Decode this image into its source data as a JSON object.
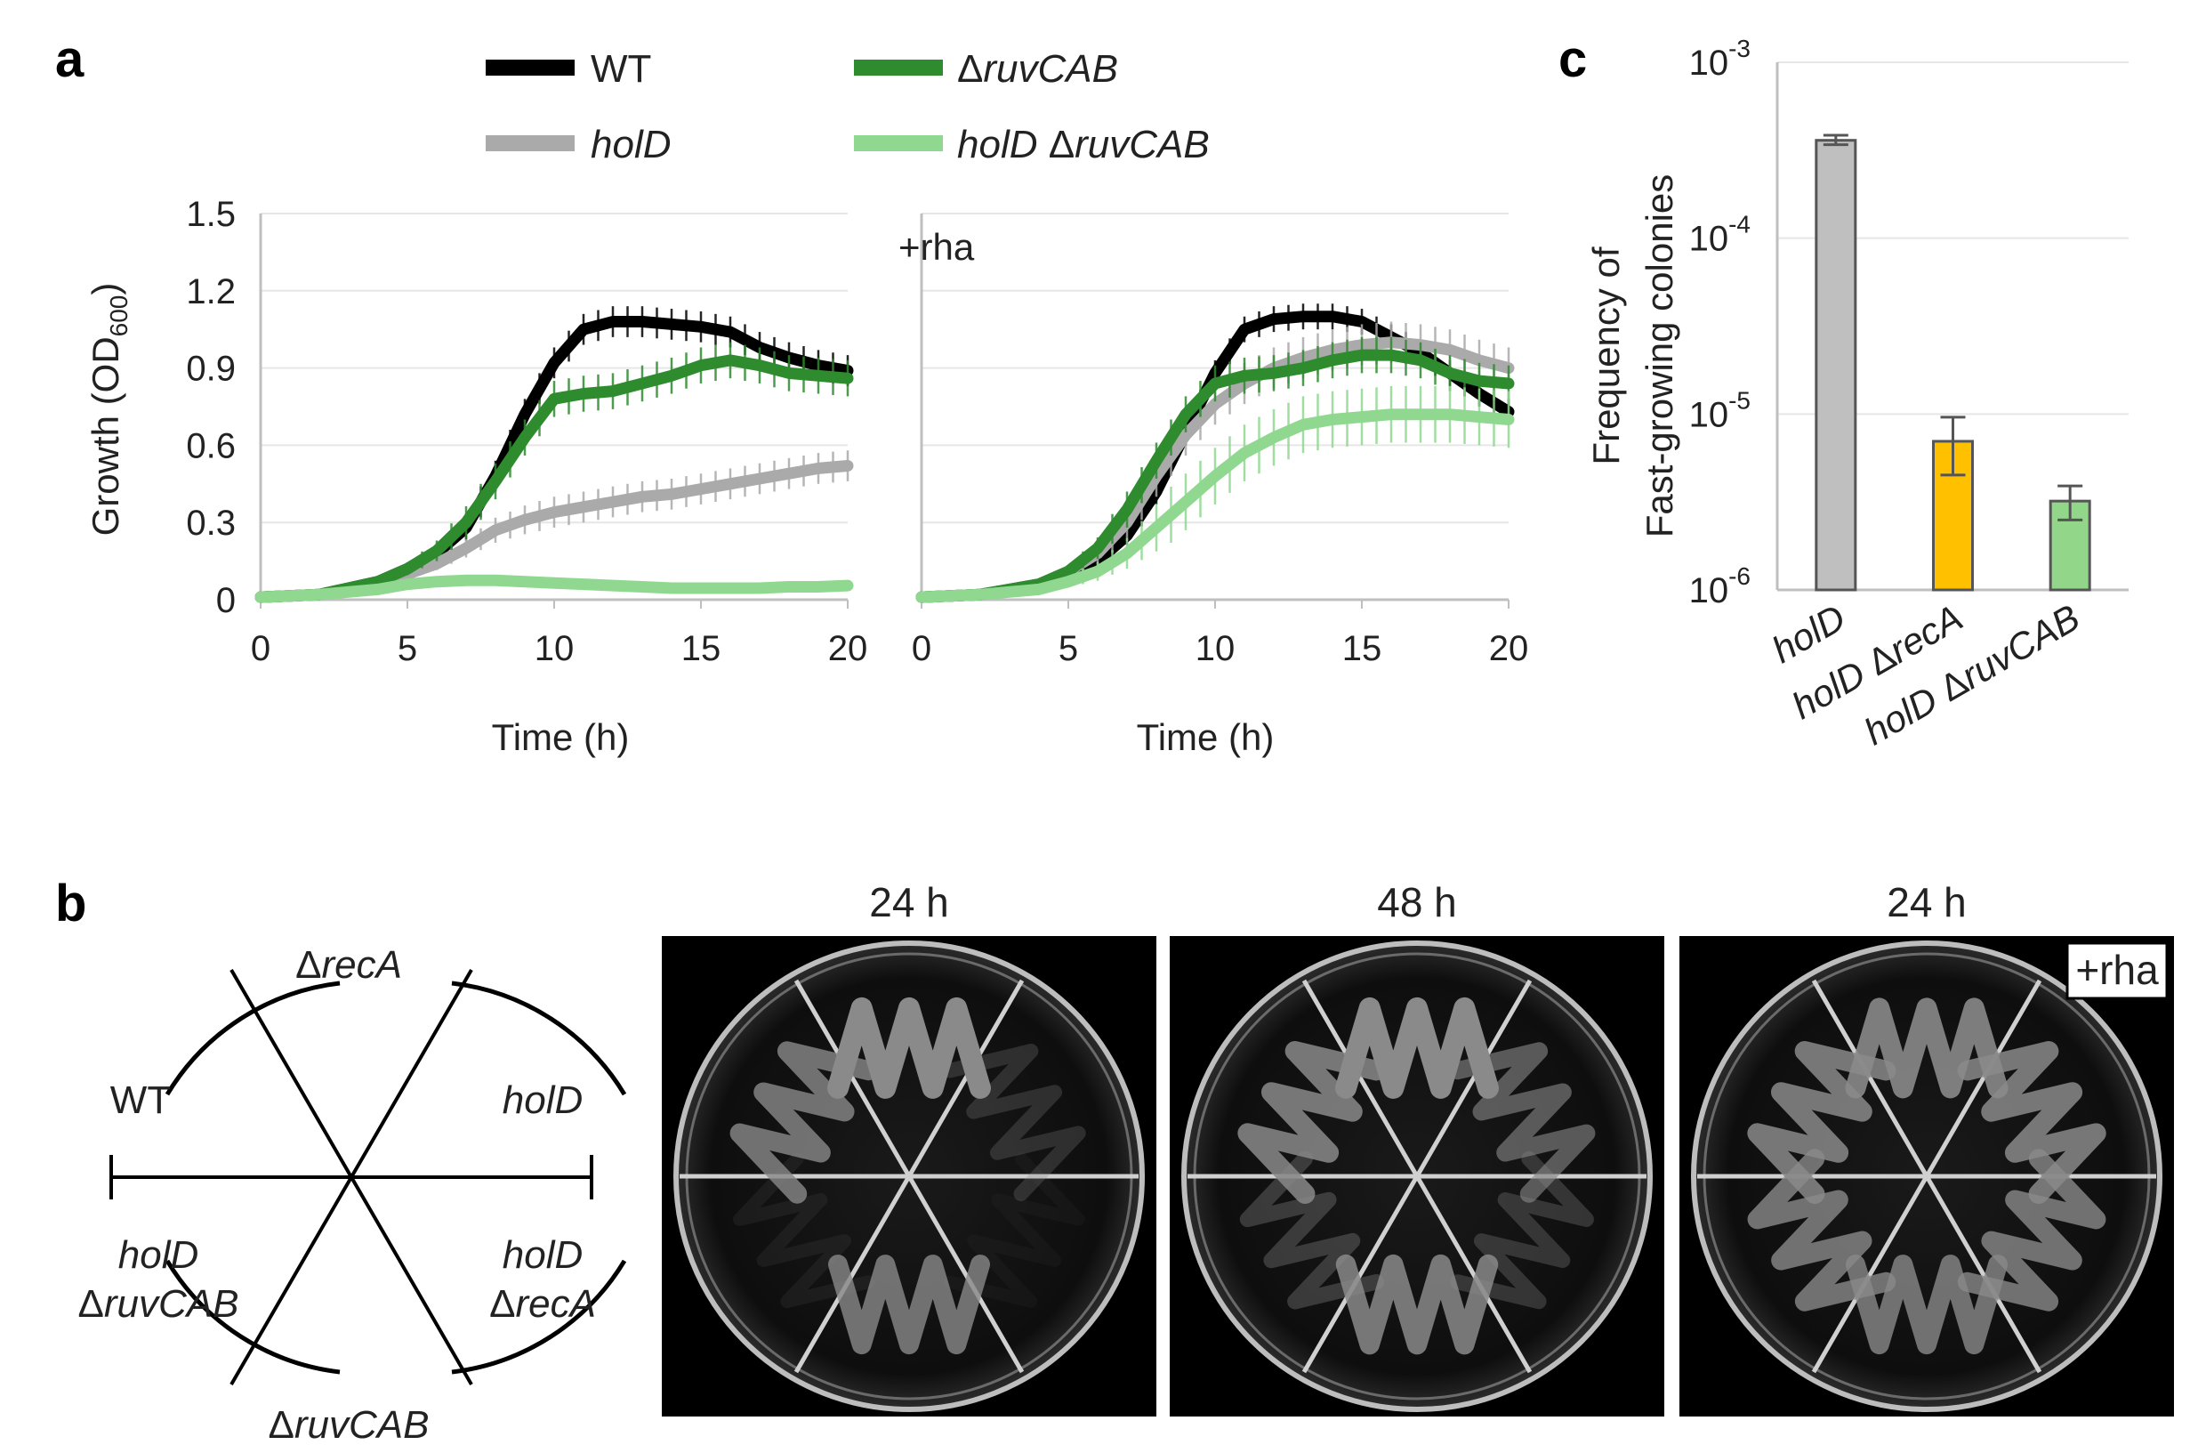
{
  "panel_labels": {
    "a": "a",
    "b": "b",
    "c": "c"
  },
  "legend": [
    {
      "pre": "",
      "italic": "",
      "text": "WT",
      "color": "#000000"
    },
    {
      "pre": "",
      "italic": "holD",
      "text": "",
      "color": "#aaaaaa"
    },
    {
      "pre": "Δ",
      "italic": "ruvCAB",
      "text": "",
      "color": "#2e8b2e"
    },
    {
      "pre": "",
      "italic": "holD",
      "text": " Δ",
      "italic2": "ruvCAB",
      "color": "#90d890"
    }
  ],
  "chart_data": [
    {
      "type": "line",
      "title": "",
      "xlabel": "Time (h)",
      "ylabel": "Growth (OD",
      "ylabel_sub": "600",
      "ylabel_close": ")",
      "xlim": [
        0,
        20
      ],
      "ylim": [
        0,
        1.5
      ],
      "xticks": [
        "0",
        "5",
        "10",
        "15",
        "20"
      ],
      "yticks": [
        "0",
        "0.3",
        "0.6",
        "0.9",
        "1.2",
        "1.5"
      ],
      "x": [
        0,
        2,
        4,
        5,
        6,
        7,
        8,
        9,
        10,
        11,
        12,
        13,
        14,
        15,
        16,
        17,
        18,
        19,
        20
      ],
      "series": [
        {
          "name": "WT",
          "color": "#000000",
          "values": [
            0.01,
            0.02,
            0.07,
            0.12,
            0.18,
            0.28,
            0.48,
            0.72,
            0.92,
            1.05,
            1.08,
            1.08,
            1.07,
            1.06,
            1.04,
            0.98,
            0.94,
            0.91,
            0.89
          ],
          "err": 0.06
        },
        {
          "name": "holD",
          "color": "#aaaaaa",
          "values": [
            0.01,
            0.02,
            0.06,
            0.1,
            0.14,
            0.2,
            0.27,
            0.31,
            0.34,
            0.36,
            0.38,
            0.4,
            0.41,
            0.43,
            0.45,
            0.47,
            0.49,
            0.51,
            0.52
          ],
          "err": 0.06
        },
        {
          "name": "ΔruvCAB",
          "color": "#2e8b2e",
          "values": [
            0.01,
            0.02,
            0.07,
            0.12,
            0.19,
            0.3,
            0.46,
            0.63,
            0.78,
            0.8,
            0.81,
            0.84,
            0.87,
            0.91,
            0.93,
            0.91,
            0.88,
            0.87,
            0.86
          ],
          "err": 0.07
        },
        {
          "name": "holD ΔruvCAB",
          "color": "#90d890",
          "values": [
            0.01,
            0.02,
            0.04,
            0.06,
            0.07,
            0.075,
            0.075,
            0.07,
            0.065,
            0.06,
            0.055,
            0.05,
            0.045,
            0.045,
            0.045,
            0.045,
            0.05,
            0.05,
            0.055
          ],
          "err": 0.01
        }
      ]
    },
    {
      "type": "line",
      "title": "+rha",
      "xlabel": "Time (h)",
      "xlim": [
        0,
        20
      ],
      "ylim": [
        0,
        1.5
      ],
      "xticks": [
        "0",
        "5",
        "10",
        "15",
        "20"
      ],
      "x": [
        0,
        2,
        4,
        5,
        6,
        7,
        8,
        9,
        10,
        11,
        12,
        13,
        14,
        15,
        16,
        17,
        18,
        19,
        20
      ],
      "series": [
        {
          "name": "WT",
          "color": "#000000",
          "values": [
            0.01,
            0.02,
            0.06,
            0.1,
            0.15,
            0.25,
            0.42,
            0.65,
            0.88,
            1.05,
            1.09,
            1.1,
            1.1,
            1.08,
            1.02,
            0.96,
            0.88,
            0.8,
            0.73
          ],
          "err": 0.05
        },
        {
          "name": "holD",
          "color": "#aaaaaa",
          "values": [
            0.01,
            0.02,
            0.06,
            0.11,
            0.18,
            0.3,
            0.48,
            0.64,
            0.76,
            0.84,
            0.9,
            0.94,
            0.97,
            0.99,
            1.0,
            0.99,
            0.97,
            0.93,
            0.9
          ],
          "err": 0.08
        },
        {
          "name": "ΔruvCAB",
          "color": "#2e8b2e",
          "values": [
            0.01,
            0.02,
            0.06,
            0.11,
            0.2,
            0.35,
            0.54,
            0.72,
            0.84,
            0.87,
            0.88,
            0.9,
            0.93,
            0.95,
            0.95,
            0.93,
            0.88,
            0.85,
            0.84
          ],
          "err": 0.07
        },
        {
          "name": "holD ΔruvCAB",
          "color": "#90d890",
          "values": [
            0.01,
            0.02,
            0.04,
            0.07,
            0.11,
            0.18,
            0.28,
            0.38,
            0.48,
            0.57,
            0.63,
            0.68,
            0.7,
            0.71,
            0.72,
            0.72,
            0.72,
            0.71,
            0.7
          ],
          "err": 0.11
        }
      ]
    },
    {
      "type": "bar",
      "yscale": "log",
      "ylabel_line1": "Frequency of",
      "ylabel_line2": "Fast-growing colonies",
      "ylim": [
        1e-06,
        0.001
      ],
      "yticks": [
        {
          "base": "10",
          "exp": "-3"
        },
        {
          "base": "10",
          "exp": "-4"
        },
        {
          "base": "10",
          "exp": "-5"
        },
        {
          "base": "10",
          "exp": "-6"
        }
      ],
      "categories": [
        {
          "italic": "holD",
          "rest": ""
        },
        {
          "italic": "holD",
          "rest": " Δ",
          "italic2": "recA"
        },
        {
          "italic": "holD",
          "rest": " Δ",
          "italic2": "ruvCAB"
        }
      ],
      "values": [
        0.00036,
        7e-06,
        3.2e-06
      ],
      "err_hi": [
        0.000385,
        9.6e-06,
        3.9e-06
      ],
      "err_lo": [
        0.00034,
        4.5e-06,
        2.5e-06
      ],
      "colors": [
        "#bfbfbf",
        "#ffc000",
        "#92d68a"
      ]
    }
  ],
  "panel_b": {
    "sectors": {
      "top": {
        "pre": "Δ",
        "italic": "recA"
      },
      "upper_left": {
        "text": "WT"
      },
      "upper_right": {
        "italic": "holD"
      },
      "lower_left_l1": {
        "italic": "holD"
      },
      "lower_left_l2": {
        "pre": "Δ",
        "italic": "ruvCAB"
      },
      "lower_right_l1": {
        "italic": "holD"
      },
      "lower_right_l2": {
        "pre": "Δ",
        "italic": "recA"
      },
      "bottom": {
        "pre": "Δ",
        "italic": "ruvCAB"
      }
    },
    "plates": [
      {
        "title": "24 h",
        "badge": ""
      },
      {
        "title": "48 h",
        "badge": ""
      },
      {
        "title": "24 h",
        "badge": "+rha"
      }
    ]
  }
}
